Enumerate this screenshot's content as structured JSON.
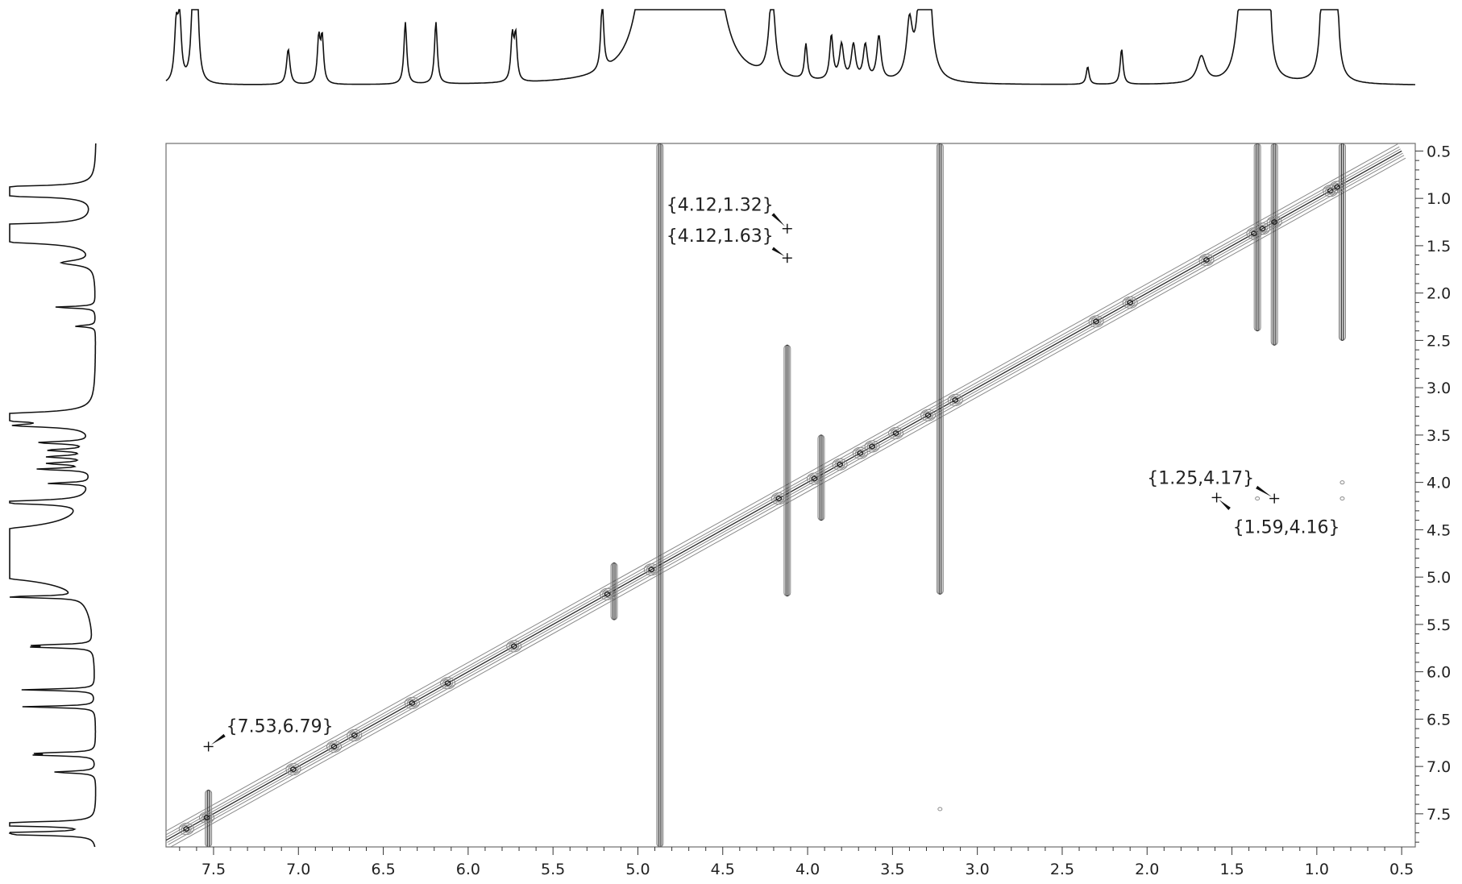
{
  "chart_data": {
    "type": "heatmap",
    "subtype": "2D NMR COSY contour plot",
    "title": "",
    "xlabel": "",
    "ylabel": "",
    "x_axis": {
      "reversed": true,
      "range": [
        7.78,
        0.42
      ],
      "ticks": [
        "7.5",
        "7.0",
        "6.5",
        "6.0",
        "5.5",
        "5.0",
        "4.5",
        "4.0",
        "3.5",
        "3.0",
        "2.5",
        "2.0",
        "1.5",
        "1.0",
        "0.5"
      ]
    },
    "y_axis": {
      "reversed": false,
      "range": [
        0.42,
        7.85
      ],
      "position": "right",
      "ticks": [
        "0.5",
        "1.0",
        "1.5",
        "2.0",
        "2.5",
        "3.0",
        "3.5",
        "4.0",
        "4.5",
        "5.0",
        "5.5",
        "6.0",
        "6.5",
        "7.0",
        "7.5"
      ]
    },
    "grid": false,
    "diagonal_peaks": [
      7.66,
      7.54,
      7.03,
      6.79,
      6.67,
      6.33,
      6.12,
      5.73,
      5.18,
      4.92,
      4.17,
      3.96,
      3.81,
      3.69,
      3.62,
      3.48,
      3.29,
      3.13,
      2.3,
      2.1,
      1.65,
      1.37,
      1.32,
      1.25,
      0.92,
      0.88
    ],
    "streak_peaks": [
      {
        "x": 4.87,
        "y_from": 0.42,
        "y_to": 7.85
      },
      {
        "x": 3.22,
        "y_from": 0.42,
        "y_to": 5.18
      },
      {
        "x": 4.12,
        "y_from": 2.55,
        "y_to": 5.2
      },
      {
        "x": 7.53,
        "y_from": 7.25,
        "y_to": 7.85
      },
      {
        "x": 5.14,
        "y_from": 4.85,
        "y_to": 5.45
      },
      {
        "x": 3.92,
        "y_from": 3.5,
        "y_to": 4.4
      },
      {
        "x": 1.25,
        "y_from": 0.42,
        "y_to": 2.55
      },
      {
        "x": 1.35,
        "y_from": 0.42,
        "y_to": 2.4
      },
      {
        "x": 0.85,
        "y_from": 0.42,
        "y_to": 2.5
      }
    ],
    "cross_peaks": [
      {
        "x": 4.12,
        "y": 1.32,
        "label": "{4.12,1.32}"
      },
      {
        "x": 4.12,
        "y": 1.63,
        "label": "{4.12,1.63}"
      },
      {
        "x": 1.25,
        "y": 4.17,
        "label": "{1.25,4.17}"
      },
      {
        "x": 1.59,
        "y": 4.16,
        "label": "{1.59,4.16}"
      },
      {
        "x": 7.53,
        "y": 6.79,
        "label": "{7.53,6.79}"
      }
    ],
    "extra_spots": [
      {
        "x": 3.22,
        "y": 7.45
      },
      {
        "x": 0.85,
        "y": 4.0
      },
      {
        "x": 0.85,
        "y": 4.17
      },
      {
        "x": 1.35,
        "y": 4.17
      }
    ],
    "projection_1d": {
      "baseline": 0.04,
      "peaks": [
        {
          "x": 7.72,
          "h": 0.06,
          "w": 0.012
        },
        {
          "x": 7.7,
          "h": 0.07,
          "w": 0.012
        },
        {
          "x": 7.62,
          "h": 0.1,
          "w": 0.012
        },
        {
          "x": 7.6,
          "h": 0.12,
          "w": 0.012
        },
        {
          "x": 7.06,
          "h": 0.04,
          "w": 0.012
        },
        {
          "x": 6.88,
          "h": 0.05,
          "w": 0.01
        },
        {
          "x": 6.86,
          "h": 0.05,
          "w": 0.01
        },
        {
          "x": 6.37,
          "h": 0.07,
          "w": 0.01
        },
        {
          "x": 6.19,
          "h": 0.07,
          "w": 0.01
        },
        {
          "x": 5.74,
          "h": 0.05,
          "w": 0.01
        },
        {
          "x": 5.72,
          "h": 0.05,
          "w": 0.01
        },
        {
          "x": 5.21,
          "h": 0.08,
          "w": 0.01
        },
        {
          "x": 4.87,
          "h": 2.0,
          "w": 0.03
        },
        {
          "x": 4.58,
          "h": 0.2,
          "w": 0.07
        },
        {
          "x": 4.21,
          "h": 0.1,
          "w": 0.02
        },
        {
          "x": 4.01,
          "h": 0.04,
          "w": 0.01
        },
        {
          "x": 3.86,
          "h": 0.05,
          "w": 0.012
        },
        {
          "x": 3.8,
          "h": 0.04,
          "w": 0.015
        },
        {
          "x": 3.73,
          "h": 0.04,
          "w": 0.015
        },
        {
          "x": 3.66,
          "h": 0.04,
          "w": 0.015
        },
        {
          "x": 3.58,
          "h": 0.05,
          "w": 0.015
        },
        {
          "x": 3.4,
          "h": 0.06,
          "w": 0.02
        },
        {
          "x": 3.31,
          "h": 1.5,
          "w": 0.01
        },
        {
          "x": 2.35,
          "h": 0.02,
          "w": 0.01
        },
        {
          "x": 2.15,
          "h": 0.04,
          "w": 0.01
        },
        {
          "x": 1.68,
          "h": 0.03,
          "w": 0.03
        },
        {
          "x": 1.45,
          "h": 0.08,
          "w": 0.03
        },
        {
          "x": 1.38,
          "h": 0.18,
          "w": 0.025
        },
        {
          "x": 1.33,
          "h": 0.12,
          "w": 0.02
        },
        {
          "x": 1.29,
          "h": 0.3,
          "w": 0.01
        },
        {
          "x": 0.96,
          "h": 0.25,
          "w": 0.01
        },
        {
          "x": 0.94,
          "h": 0.4,
          "w": 0.008
        },
        {
          "x": 0.93,
          "h": 0.32,
          "w": 0.008
        },
        {
          "x": 0.91,
          "h": 0.3,
          "w": 0.008
        },
        {
          "x": 0.89,
          "h": 0.22,
          "w": 0.01
        }
      ]
    },
    "colors": {
      "contour": "#8a8a8a",
      "contour_core": "#2b2b2b",
      "spectrum": "#111111",
      "frame": "#6e6e6e",
      "annotation": "#111111"
    }
  }
}
